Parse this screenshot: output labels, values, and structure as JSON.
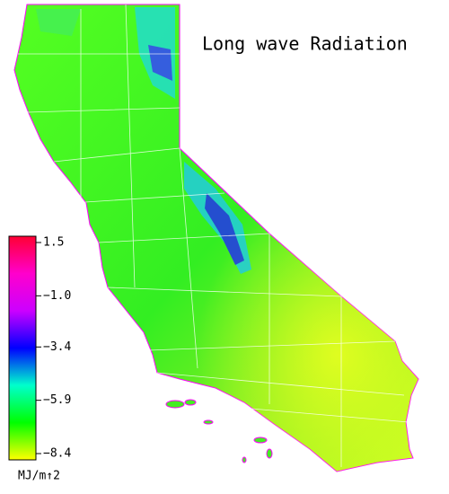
{
  "map": {
    "title": "Long wave Radiation",
    "colorbar": {
      "lim": [
        -8.4,
        1.5
      ],
      "ticks": [
        1.5,
        {
          "value": -1.0,
          "label": "−1.0"
        },
        {
          "value": -3.4,
          "label": "−3.4"
        },
        {
          "value": -5.9,
          "label": "−5.9"
        },
        {
          "value": -8.4,
          "label": "−8.4"
        }
      ],
      "colors": [
        "#ffff00",
        "#00ff00",
        "#00ffcc",
        "#0000ff",
        "#cc00ff",
        "#ff00cc",
        "#ff0033"
      ],
      "unit": "MJ/m↑2"
    }
  }
}
